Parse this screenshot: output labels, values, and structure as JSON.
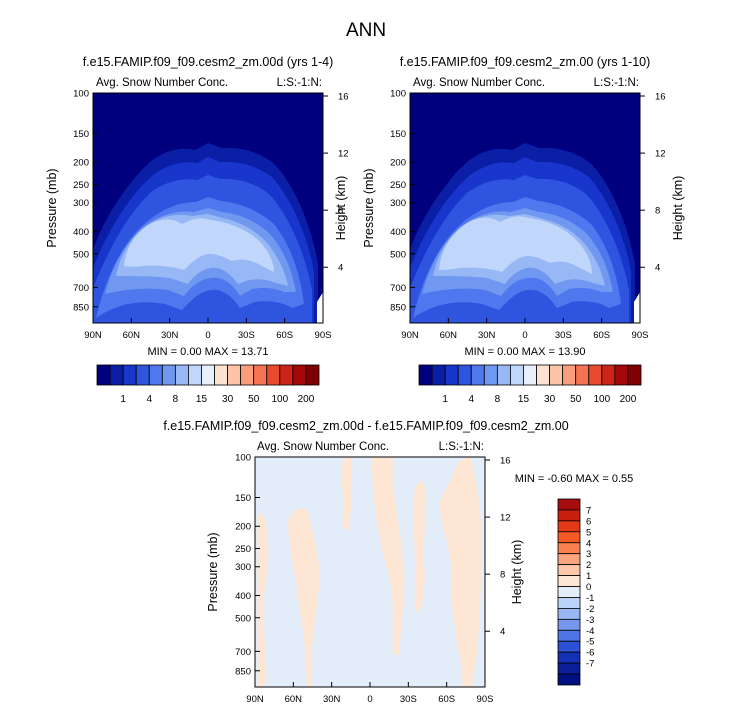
{
  "main_title": "ANN",
  "chart_data": [
    {
      "type": "heatmap",
      "title": "f.e15.FAMIP.f09_f09.cesm2_zm.00d (yrs 1-4)",
      "left_label": "Avg. Snow Number Conc.",
      "right_label": "L:S:-1:N:",
      "ylabel": "Pressure (mb)",
      "y2label": "Height (km)",
      "xticks": [
        "90N",
        "60N",
        "30N",
        "0",
        "30S",
        "60S",
        "90S"
      ],
      "pressure_ticks": [
        "100",
        "150",
        "200",
        "250",
        "300",
        "400",
        "500",
        "700",
        "850"
      ],
      "height_ticks": [
        "16",
        "12",
        "8",
        "4"
      ],
      "stats": "MIN =   0.00  MAX = 13.71",
      "levels": [
        "1",
        "4",
        "8",
        "15",
        "30",
        "50",
        "100",
        "200"
      ],
      "colors": [
        "#00007f",
        "#0a1ea6",
        "#1836cc",
        "#2f55e0",
        "#4f77ee",
        "#7098f0",
        "#97b8f5",
        "#c0d6fb",
        "#e8f1fb",
        "#fce3d1",
        "#fcc5a8",
        "#fb9e7c",
        "#f57252",
        "#e84a2e",
        "#cc2418",
        "#a5080a",
        "#7f0000"
      ]
    },
    {
      "type": "heatmap",
      "title": "f.e15.FAMIP.f09_f09.cesm2_zm.00 (yrs 1-10)",
      "left_label": "Avg. Snow Number Conc.",
      "right_label": "L:S:-1:N:",
      "ylabel": "Pressure (mb)",
      "y2label": "Height (km)",
      "xticks": [
        "90N",
        "60N",
        "30N",
        "0",
        "30S",
        "60S",
        "90S"
      ],
      "pressure_ticks": [
        "100",
        "150",
        "200",
        "250",
        "300",
        "400",
        "500",
        "700",
        "850"
      ],
      "height_ticks": [
        "16",
        "12",
        "8",
        "4"
      ],
      "stats": "MIN =   0.00  MAX = 13.90",
      "levels": [
        "1",
        "4",
        "8",
        "15",
        "30",
        "50",
        "100",
        "200"
      ],
      "colors": [
        "#00007f",
        "#0a1ea6",
        "#1836cc",
        "#2f55e0",
        "#4f77ee",
        "#7098f0",
        "#97b8f5",
        "#c0d6fb",
        "#e8f1fb",
        "#fce3d1",
        "#fcc5a8",
        "#fb9e7c",
        "#f57252",
        "#e84a2e",
        "#cc2418",
        "#a5080a",
        "#7f0000"
      ]
    },
    {
      "type": "heatmap",
      "title": "f.e15.FAMIP.f09_f09.cesm2_zm.00d - f.e15.FAMIP.f09_f09.cesm2_zm.00",
      "left_label": "Avg. Snow Number Conc.",
      "right_label": "L:S:-1:N:",
      "ylabel": "Pressure (mb)",
      "y2label": "Height (km)",
      "xticks": [
        "90N",
        "60N",
        "30N",
        "0",
        "30S",
        "60S",
        "90S"
      ],
      "pressure_ticks": [
        "100",
        "150",
        "200",
        "250",
        "300",
        "400",
        "500",
        "700",
        "850"
      ],
      "height_ticks": [
        "16",
        "12",
        "8",
        "4"
      ],
      "stats": "MIN =  -0.60  MAX =   0.55",
      "levels": [
        "7",
        "6",
        "5",
        "4",
        "3",
        "2",
        "1",
        "0",
        "-1",
        "-2",
        "-3",
        "-4",
        "-5",
        "-6",
        "-7"
      ],
      "colors": [
        "#a50e0e",
        "#c7200f",
        "#e23a16",
        "#f45a24",
        "#fa8050",
        "#fca47e",
        "#fdc7a9",
        "#fde6d3",
        "#e4eefb",
        "#bcd3f8",
        "#98b7f3",
        "#7597ee",
        "#4f74e6",
        "#2c51d6",
        "#1332b6",
        "#0a1e9a",
        "#001080"
      ]
    }
  ]
}
